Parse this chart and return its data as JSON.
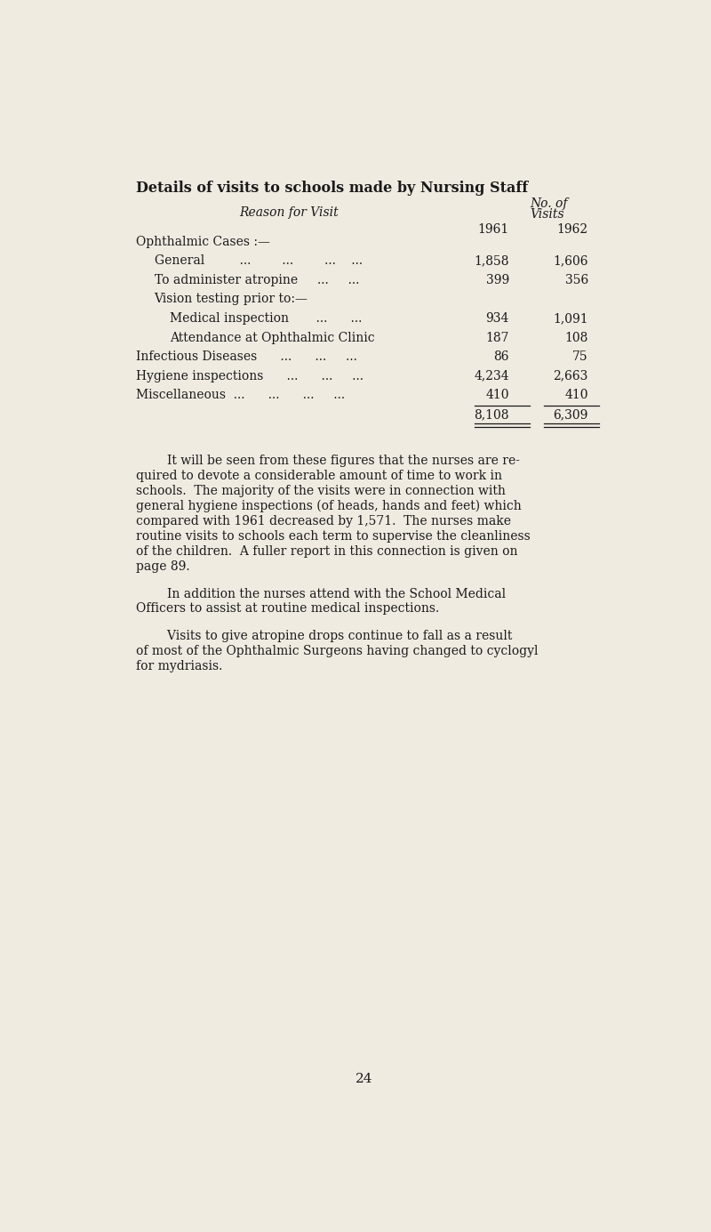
{
  "bg_color": "#f0ebe0",
  "text_color": "#1a1a1a",
  "title": "Details of visits to schools made by Nursing Staff",
  "col_header_italic": "Reason for Visit",
  "year1": "1961",
  "year2": "1962",
  "table_rows": [
    {
      "label": "Ophthalmic Cases :—",
      "indent": 0,
      "v1961": null,
      "v1962": null
    },
    {
      "label": "General         ...        ...        ...    ...",
      "indent": 1,
      "v1961": "1,858",
      "v1962": "1,606"
    },
    {
      "label": "To administer atropine     ...     ...",
      "indent": 1,
      "v1961": "399",
      "v1962": "356"
    },
    {
      "label": "Vision testing prior to:—",
      "indent": 1,
      "v1961": null,
      "v1962": null
    },
    {
      "label": "Medical inspection       ...      ...",
      "indent": 2,
      "v1961": "934",
      "v1962": "1,091"
    },
    {
      "label": "Attendance at Ophthalmic Clinic",
      "indent": 2,
      "v1961": "187",
      "v1962": "108"
    },
    {
      "label": "Infectious Diseases      ...      ...     ...",
      "indent": 0,
      "v1961": "86",
      "v1962": "75"
    },
    {
      "label": "Hygiene inspections      ...      ...     ...",
      "indent": 0,
      "v1961": "4,234",
      "v1962": "2,663"
    },
    {
      "label": "Miscellaneous  ...      ...      ...     ...",
      "indent": 0,
      "v1961": "410",
      "v1962": "410"
    },
    {
      "label": "",
      "indent": 0,
      "v1961": "8,108",
      "v1962": "6,309",
      "is_total": true
    }
  ],
  "paragraph1_lines": [
    "        It will be seen from these figures that the nurses are re-",
    "quired to devote a considerable amount of time to work in",
    "schools.  The majority of the visits were in connection with",
    "general hygiene inspections (of heads, hands and feet) which",
    "compared with 1961 decreased by 1,571.  The nurses make",
    "routine visits to schools each term to supervise the cleanliness",
    "of the children.  A fuller report in this connection is given on",
    "page 89."
  ],
  "paragraph2_lines": [
    "        In addition the nurses attend with the School Medical",
    "Officers to assist at routine medical inspections."
  ],
  "paragraph3_lines": [
    "        Visits to give atropine drops continue to fall as a result",
    "of most of the Ophthalmic Surgeons having changed to cyclogyl",
    "for mydriasis."
  ],
  "page_number": "24",
  "title_fontsize": 11.5,
  "table_fontsize": 10.0,
  "body_fontsize": 10.0
}
